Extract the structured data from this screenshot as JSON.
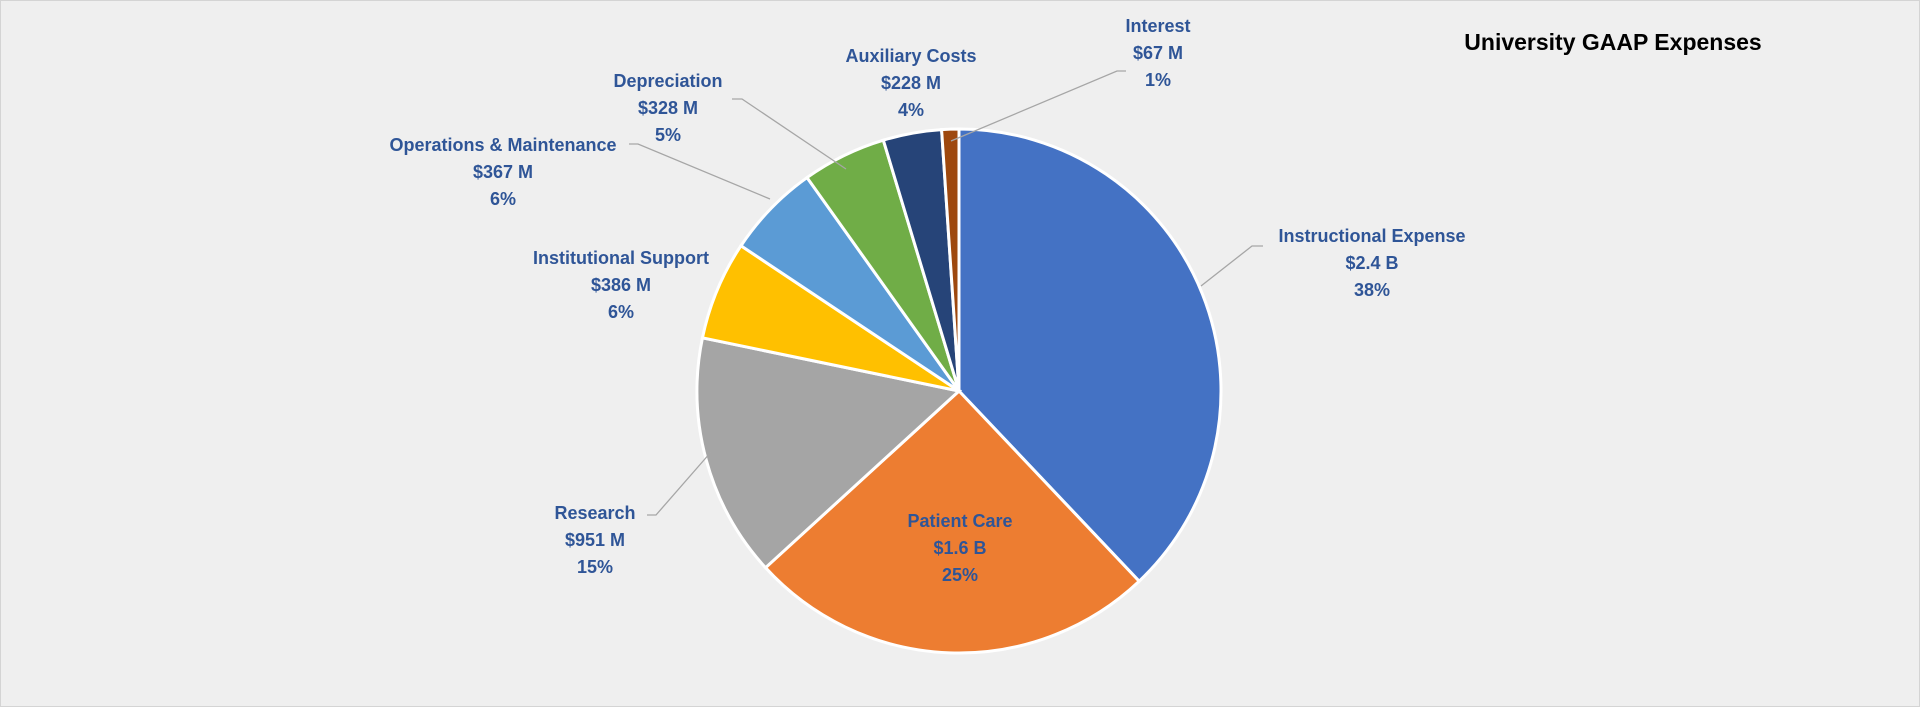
{
  "chart_data": {
    "type": "pie",
    "title": "University GAAP Expenses",
    "unit": "USD millions",
    "slices": [
      {
        "name": "Instructional Expense",
        "value": 2400,
        "value_label": "$2.4 B",
        "percent_label": "38%",
        "color": "#4472c4"
      },
      {
        "name": "Patient Care",
        "value": 1600,
        "value_label": "$1.6 B",
        "percent_label": "25%",
        "color": "#ed7d31"
      },
      {
        "name": "Research",
        "value": 951,
        "value_label": "$951 M",
        "percent_label": "15%",
        "color": "#a5a5a5"
      },
      {
        "name": "Institutional Support",
        "value": 386,
        "value_label": "$386 M",
        "percent_label": "6%",
        "color": "#ffc000"
      },
      {
        "name": "Operations & Maintenance",
        "value": 367,
        "value_label": "$367 M",
        "percent_label": "6%",
        "color": "#5b9bd5"
      },
      {
        "name": "Depreciation",
        "value": 328,
        "value_label": "$328 M",
        "percent_label": "5%",
        "color": "#70ad47"
      },
      {
        "name": "Auxiliary Costs",
        "value": 228,
        "value_label": "$228 M",
        "percent_label": "4%",
        "color": "#264478"
      },
      {
        "name": "Interest",
        "value": 67,
        "value_label": "$67 M",
        "percent_label": "1%",
        "color": "#9e480e"
      }
    ],
    "start_angle": "12 o'clock, clockwise",
    "legend": "none",
    "label_color": "#2f5597"
  }
}
